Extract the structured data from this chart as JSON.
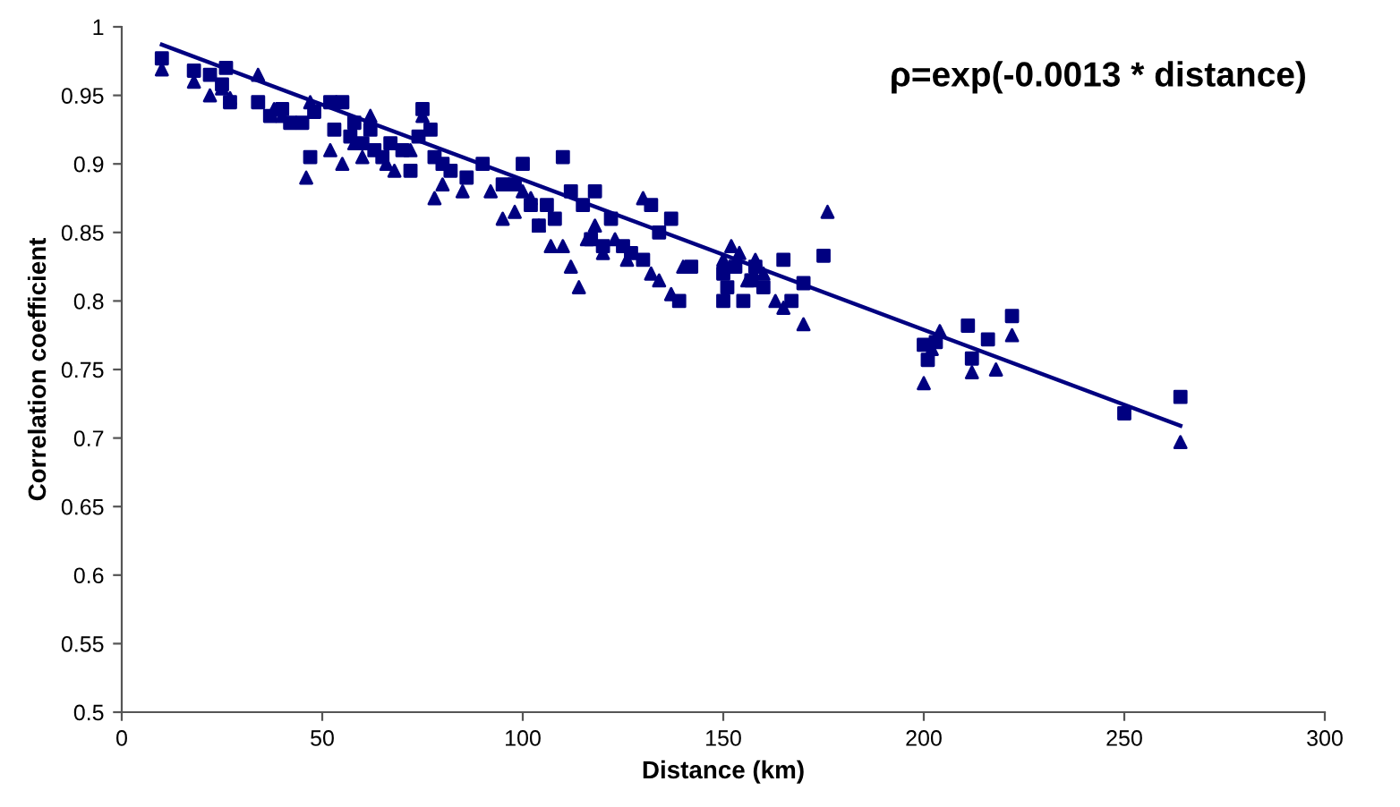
{
  "chart_data": {
    "type": "scatter",
    "xlabel": "Distance (km)",
    "ylabel": "Correlation coefficient",
    "annotations": [
      "ρ=exp(-0.0013 * distance)"
    ],
    "xlim": [
      0,
      300
    ],
    "xticks": [
      0,
      50,
      100,
      150,
      200,
      250,
      300
    ],
    "ylim": [
      0.5,
      1
    ],
    "yticks": [
      0.5,
      0.55,
      0.6,
      0.65,
      0.7,
      0.75,
      0.8,
      0.85,
      0.9,
      0.95,
      1
    ],
    "grid": false,
    "series": [
      {
        "marker": "square",
        "color": "#000080",
        "x": [
          10,
          18,
          22,
          26,
          25,
          27,
          34,
          37,
          40,
          42,
          45,
          47,
          48,
          52,
          53,
          55,
          57,
          58,
          60,
          62,
          63,
          65,
          67,
          70,
          72,
          74,
          75,
          77,
          78,
          80,
          82,
          86,
          90,
          95,
          98,
          100,
          102,
          104,
          106,
          108,
          110,
          112,
          115,
          117,
          118,
          120,
          122,
          125,
          127,
          130,
          132,
          134,
          137,
          139,
          142,
          150,
          150,
          151,
          153,
          155,
          157,
          158,
          160,
          165,
          167,
          170,
          175,
          200,
          201,
          203,
          211,
          212,
          216,
          222,
          250,
          264
        ],
        "values": [
          0.977,
          0.968,
          0.965,
          0.97,
          0.958,
          0.945,
          0.945,
          0.935,
          0.94,
          0.93,
          0.93,
          0.905,
          0.938,
          0.945,
          0.925,
          0.945,
          0.92,
          0.93,
          0.915,
          0.925,
          0.91,
          0.905,
          0.915,
          0.91,
          0.895,
          0.92,
          0.94,
          0.925,
          0.905,
          0.9,
          0.895,
          0.89,
          0.9,
          0.885,
          0.885,
          0.9,
          0.87,
          0.855,
          0.87,
          0.86,
          0.905,
          0.88,
          0.87,
          0.845,
          0.88,
          0.84,
          0.86,
          0.84,
          0.835,
          0.83,
          0.87,
          0.85,
          0.86,
          0.8,
          0.825,
          0.82,
          0.8,
          0.81,
          0.825,
          0.8,
          0.815,
          0.825,
          0.81,
          0.83,
          0.8,
          0.813,
          0.833,
          0.768,
          0.757,
          0.77,
          0.782,
          0.758,
          0.772,
          0.789,
          0.718,
          0.73
        ]
      },
      {
        "marker": "triangle",
        "color": "#000080",
        "x": [
          10,
          18,
          22,
          25,
          27,
          34,
          38,
          40,
          46,
          47,
          52,
          55,
          58,
          60,
          62,
          66,
          68,
          72,
          75,
          78,
          80,
          85,
          92,
          95,
          98,
          100,
          102,
          104,
          107,
          110,
          112,
          114,
          116,
          118,
          120,
          123,
          126,
          130,
          132,
          134,
          137,
          140,
          150,
          152,
          154,
          156,
          158,
          160,
          163,
          165,
          170,
          176,
          200,
          202,
          204,
          212,
          218,
          222,
          250,
          264
        ],
        "values": [
          0.969,
          0.96,
          0.95,
          0.955,
          0.948,
          0.965,
          0.94,
          0.935,
          0.89,
          0.945,
          0.91,
          0.9,
          0.915,
          0.905,
          0.935,
          0.9,
          0.895,
          0.91,
          0.935,
          0.875,
          0.885,
          0.88,
          0.88,
          0.86,
          0.865,
          0.88,
          0.875,
          0.855,
          0.84,
          0.84,
          0.825,
          0.81,
          0.845,
          0.855,
          0.835,
          0.845,
          0.83,
          0.875,
          0.82,
          0.815,
          0.805,
          0.825,
          0.83,
          0.84,
          0.835,
          0.815,
          0.83,
          0.82,
          0.8,
          0.795,
          0.783,
          0.865,
          0.74,
          0.765,
          0.778,
          0.748,
          0.75,
          0.775,
          null,
          0.697
        ]
      },
      {
        "type": "line",
        "marker": "none",
        "line_style": "solid",
        "color": "#000080",
        "x": [
          10,
          264
        ],
        "values": [
          0.987,
          0.709
        ]
      }
    ]
  }
}
